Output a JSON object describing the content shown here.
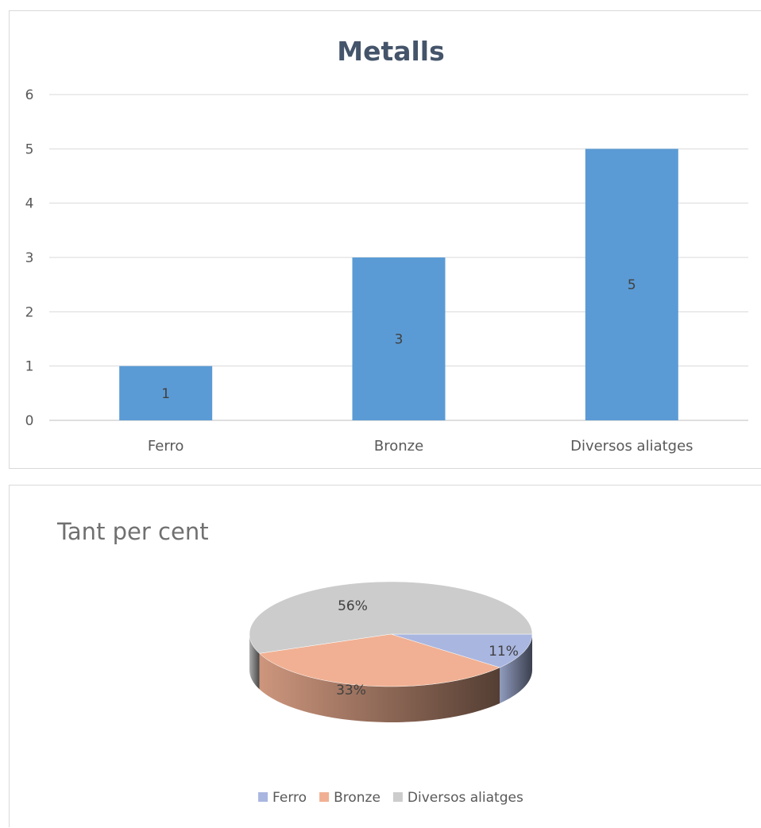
{
  "chart_data": [
    {
      "type": "bar",
      "title": "Metalls",
      "categories": [
        "Ferro",
        "Bronze",
        "Diversos aliatges"
      ],
      "values": [
        1,
        3,
        5
      ],
      "data_labels": [
        "1",
        "3",
        "5"
      ],
      "y_ticks": [
        "0",
        "1",
        "2",
        "3",
        "4",
        "5",
        "6"
      ],
      "ylim": [
        0,
        6
      ],
      "grid": true,
      "legend": "none",
      "bar_color": "#5b9bd5"
    },
    {
      "type": "pie",
      "title": "Tant per cent",
      "labels": [
        "Ferro",
        "Bronze",
        "Diversos aliatges"
      ],
      "values": [
        11,
        33,
        56
      ],
      "data_labels": [
        "11%",
        "33%",
        "56%"
      ],
      "colors": [
        "#a9b6e0",
        "#f1b093",
        "#cccccc"
      ],
      "legend": "bottom",
      "style": "3d"
    }
  ]
}
